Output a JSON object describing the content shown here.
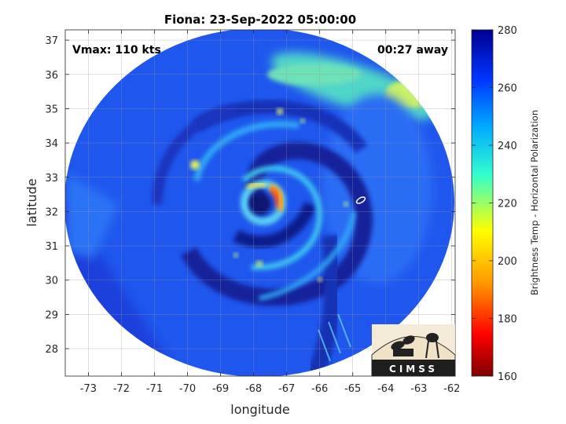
{
  "chart_data": {
    "type": "heatmap",
    "title": "Fiona: 23-Sep-2022 05:00:00",
    "xlabel": "longitude",
    "ylabel": "latitude",
    "xlim": [
      -73.7,
      -61.9
    ],
    "ylim": [
      27.2,
      37.3
    ],
    "xticks": [
      -73,
      -72,
      -71,
      -70,
      -69,
      -68,
      -67,
      -66,
      -65,
      -64,
      -63,
      -62
    ],
    "yticks": [
      28,
      29,
      30,
      31,
      32,
      33,
      34,
      35,
      36,
      37
    ],
    "grid": true,
    "annotations": {
      "vmax": "Vmax: 110 kts",
      "away": "00:27 away"
    },
    "storm_center": {
      "lon": -67.9,
      "lat": 32.2
    },
    "colorbar": {
      "label": "Brightness Temp - Horizontal Polarization",
      "min": 160,
      "max": 280,
      "ticks": [
        160,
        180,
        200,
        220,
        240,
        260,
        280
      ],
      "colors": [
        "#7f0000",
        "#ff0000",
        "#ff9900",
        "#ffff00",
        "#33ffcc",
        "#00aaff",
        "#0033ff",
        "#00008f"
      ]
    },
    "logo": "CIMSS"
  }
}
